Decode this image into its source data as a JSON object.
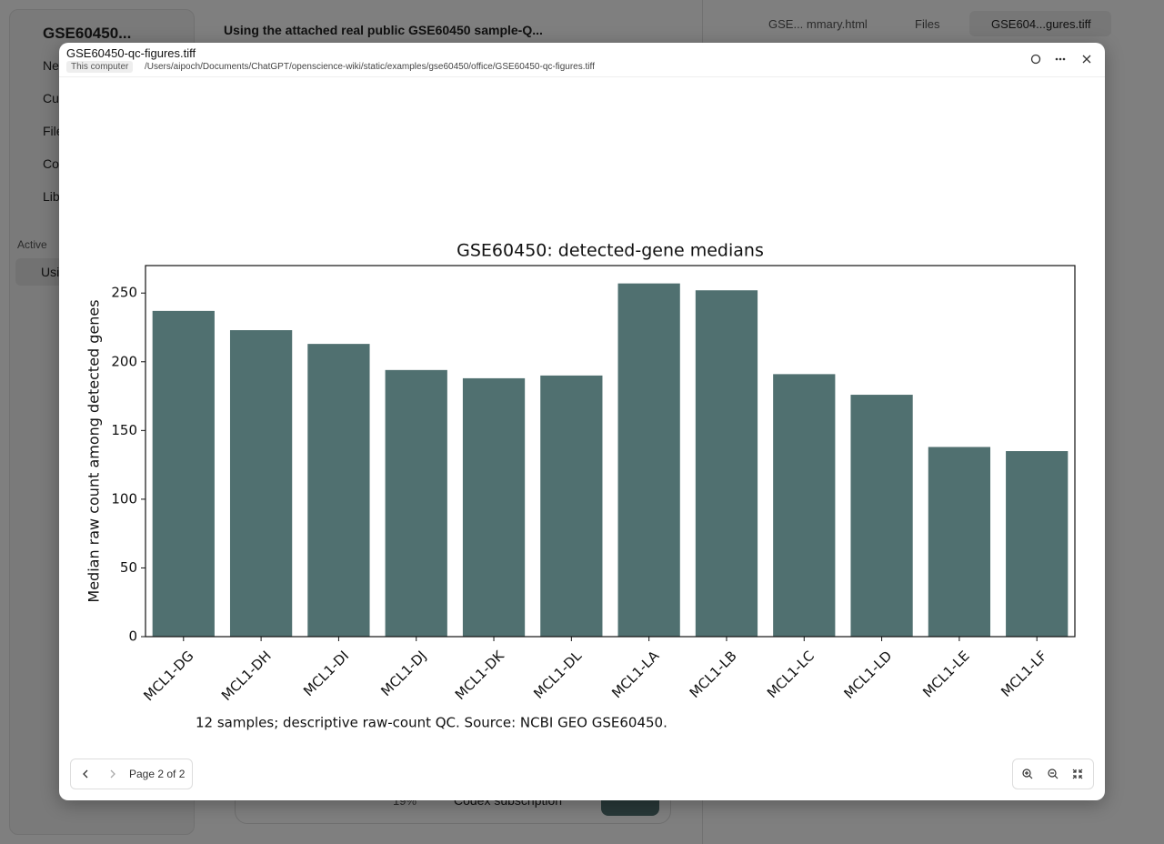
{
  "app": {
    "sidebar": {
      "project": "GSE60450...",
      "items": [
        "Ne",
        "Cu",
        "File",
        "Co",
        "Lib"
      ],
      "section": "Active",
      "active_item": "Usi"
    },
    "thread_title": "Using the attached real public GSE60450 sample-Q...",
    "tabs": [
      "GSE... mmary.html",
      "Files",
      "GSE604...gures.tiff"
    ],
    "composer": {
      "usage": "19%",
      "plan": "Codex subscription"
    }
  },
  "viewer": {
    "file_name": "GSE60450-qc-figures.tiff",
    "location": "This computer",
    "path": "/Users/aipoch/Documents/ChatGPT/openscience-wiki/static/examples/gse60450/office/GSE60450-qc-figures.tiff",
    "page_label": "Page 2 of 2"
  },
  "chart_data": {
    "type": "bar",
    "title": "GSE60450: detected-gene medians",
    "ylabel": "Median raw count among detected genes",
    "annotation": "12 samples; descriptive raw-count QC. Source: NCBI GEO GSE60450.",
    "categories": [
      "MCL1-DG",
      "MCL1-DH",
      "MCL1-DI",
      "MCL1-DJ",
      "MCL1-DK",
      "MCL1-DL",
      "MCL1-LA",
      "MCL1-LB",
      "MCL1-LC",
      "MCL1-LD",
      "MCL1-LE",
      "MCL1-LF"
    ],
    "values": [
      237,
      223,
      213,
      194,
      188,
      190,
      257,
      252,
      191,
      176,
      138,
      135
    ],
    "color": "#507070",
    "ylim": [
      0,
      270
    ],
    "yticks": [
      0,
      50,
      100,
      150,
      200,
      250
    ],
    "grid": false
  }
}
